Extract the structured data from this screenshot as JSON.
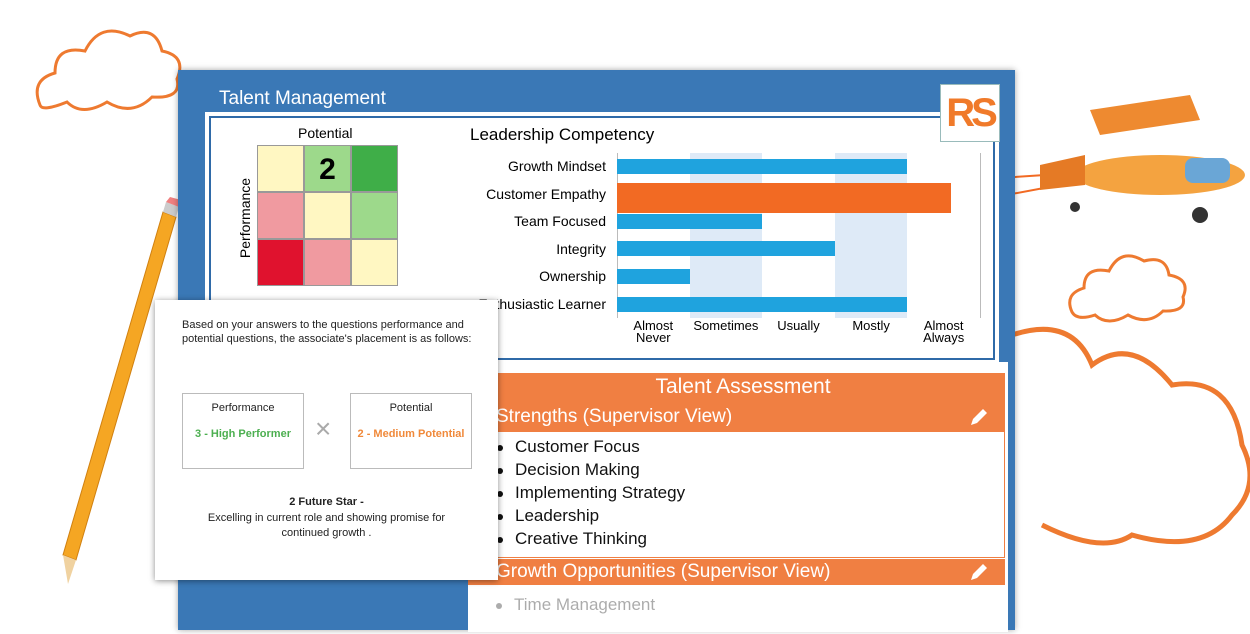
{
  "window": {
    "title": "Talent Management",
    "logo": "RS"
  },
  "matrix": {
    "x_label": "Potential",
    "y_label": "Performance",
    "cell_value": "2"
  },
  "chart_data": {
    "type": "bar",
    "orientation": "horizontal",
    "title": "Leadership Competency",
    "categories": [
      "Growth Mindset",
      "Customer Empathy",
      "Team Focused",
      "Integrity",
      "Ownership",
      "Enthusiastic Learner"
    ],
    "values": [
      4,
      4.6,
      2,
      3,
      1,
      4
    ],
    "colors": [
      "#1fa3de",
      "#f26a23",
      "#1fa3de",
      "#1fa3de",
      "#1fa3de",
      "#1fa3de"
    ],
    "xlim": [
      0,
      5
    ],
    "xticks": [
      {
        "value": 0.5,
        "label": "Almost Never"
      },
      {
        "value": 1.5,
        "label": "Sometimes"
      },
      {
        "value": 2.5,
        "label": "Usually"
      },
      {
        "value": 3.5,
        "label": "Mostly"
      },
      {
        "value": 4.5,
        "label": "Almost Always"
      }
    ],
    "band_color": "#deeaf7"
  },
  "popup": {
    "intro": "Based on your answers to the questions performance and potential questions, the associate's placement is as follows:",
    "performance": {
      "label": "Performance",
      "value": "3 - High Performer"
    },
    "times": "×",
    "potential": {
      "label": "Potential",
      "value": "2 - Medium Potential"
    },
    "result_title": "2 Future Star -",
    "result_text": "Excelling in current role and showing promise for continued growth ."
  },
  "assessment": {
    "title": "Talent Assessment",
    "strengths_heading": "Strengths (Supervisor View)",
    "strengths": [
      "Customer Focus",
      "Decision Making",
      "Implementing Strategy",
      "Leadership",
      "Creative Thinking"
    ],
    "growth_heading": "Growth Opportunities (Supervisor View)",
    "growth": [
      "Time Management"
    ]
  }
}
